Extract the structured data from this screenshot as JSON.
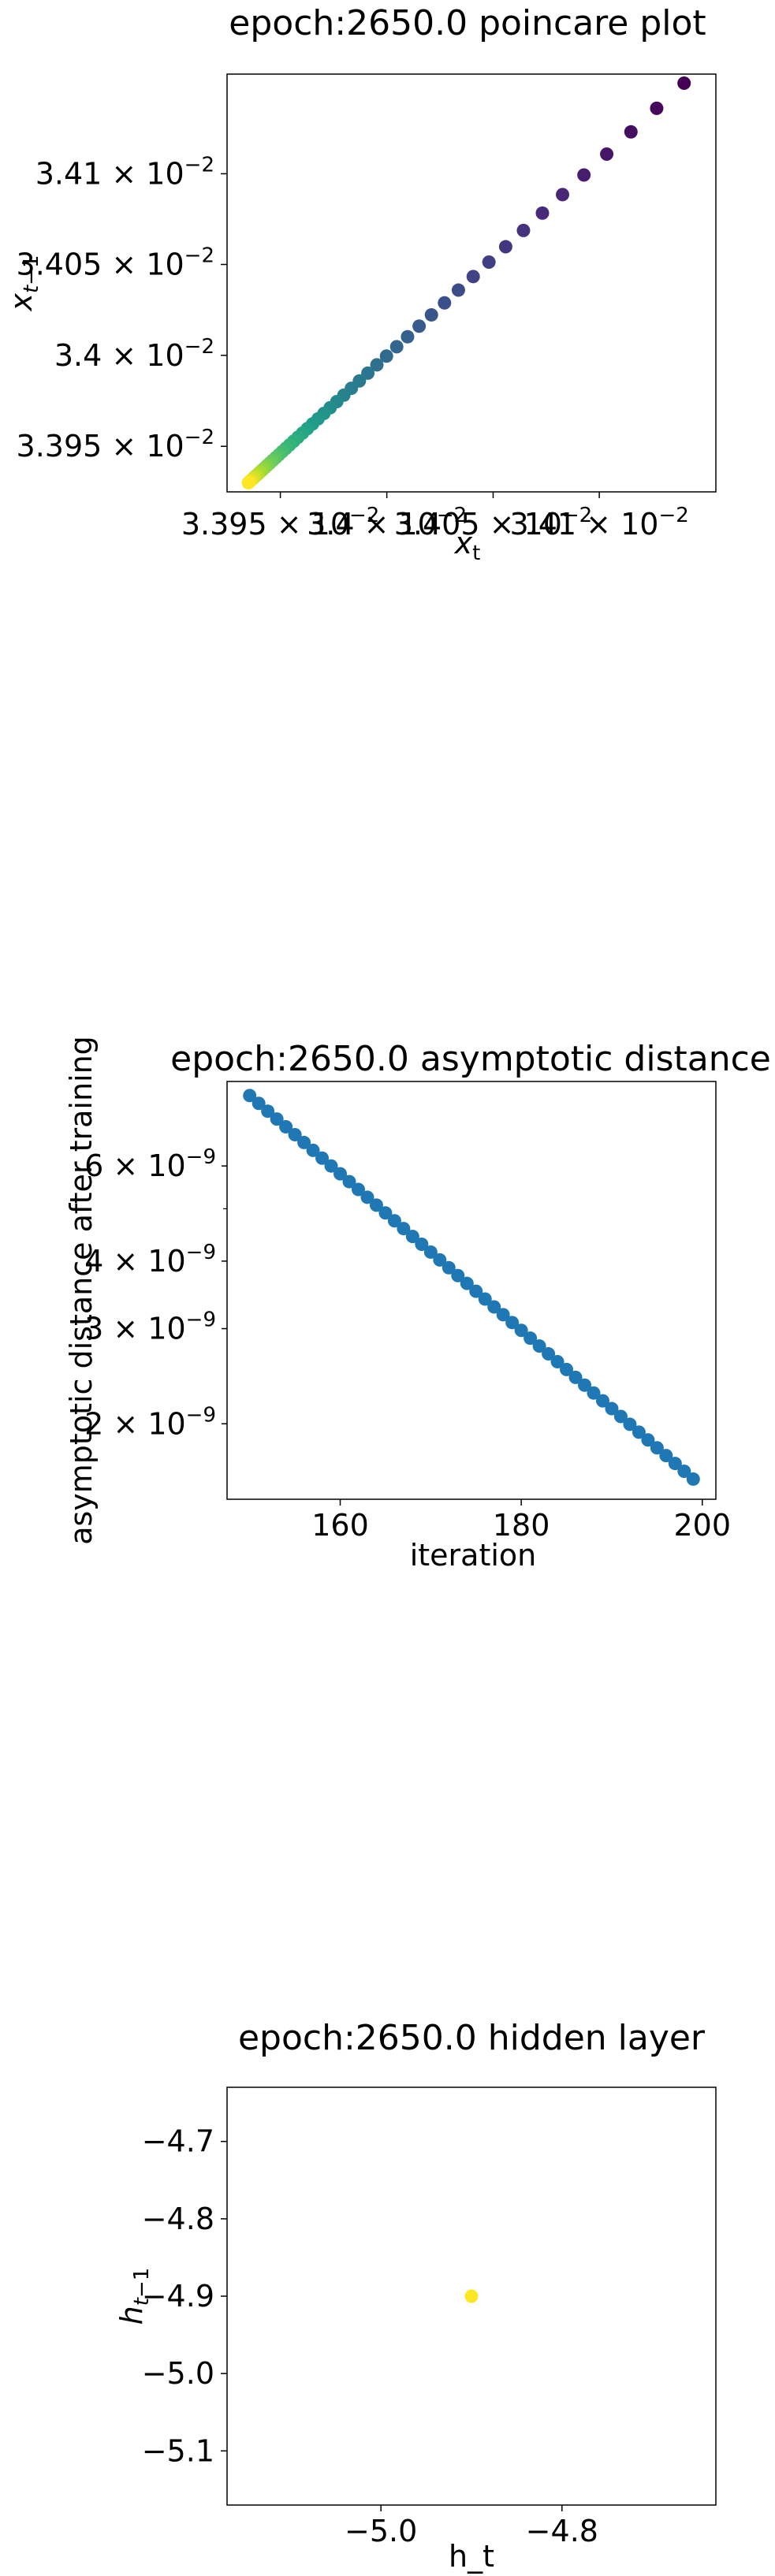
{
  "chart_data": [
    {
      "type": "scatter",
      "title": "epoch:2650.0 poincare plot",
      "xlabel": "x_t",
      "ylabel": "x_{t−1}",
      "xlim": [
        0.033925,
        0.034155
      ],
      "ylim": [
        0.033925,
        0.034155
      ],
      "x_ticks": [
        {
          "value": 0.03395,
          "mantissa": "3.395",
          "exp": "−2"
        },
        {
          "value": 0.034,
          "mantissa": "3.4",
          "exp": "−2"
        },
        {
          "value": 0.03405,
          "mantissa": "3.405",
          "exp": "−2"
        },
        {
          "value": 0.0341,
          "mantissa": "3.41",
          "exp": "−2"
        }
      ],
      "y_ticks": [
        {
          "value": 0.03395,
          "mantissa": "3.395",
          "exp": "−2"
        },
        {
          "value": 0.034,
          "mantissa": "3.4",
          "exp": "−2"
        },
        {
          "value": 0.03405,
          "mantissa": "3.405",
          "exp": "−2"
        },
        {
          "value": 0.0341,
          "mantissa": "3.41",
          "exp": "−2"
        }
      ],
      "x_scale": "log",
      "y_scale": "log",
      "color_map": "viridis (purple = earliest point, yellow = latest point)",
      "points": {
        "count": 50,
        "x_first": 0.03414,
        "y_first": 0.03415,
        "x_last": 0.033935,
        "y_last": 0.03393,
        "decay": 0.94
      },
      "grid": false
    },
    {
      "type": "scatter",
      "title": "epoch:2650.0 asymptotic distance",
      "xlabel": "iteration",
      "ylabel": "asymptotic distance after training",
      "y_scale": "log",
      "xlim": [
        147.5,
        201.5
      ],
      "ylim": [
        1.45e-09,
        8.6e-09
      ],
      "x_ticks": [
        160,
        180,
        200
      ],
      "y_ticks": [
        {
          "value": 2e-09,
          "mantissa": "2",
          "exp": "−9"
        },
        {
          "value": 3e-09,
          "mantissa": "3",
          "exp": "−9"
        },
        {
          "value": 4e-09,
          "mantissa": "4",
          "exp": "−9"
        },
        {
          "value": 6e-09,
          "mantissa": "6",
          "exp": "−9"
        }
      ],
      "color": "#1f77b4",
      "points": {
        "x_start": 150,
        "x_end": 199,
        "y_start": 8.1e-09,
        "y_end": 1.58e-09
      },
      "grid": false
    },
    {
      "type": "scatter",
      "title": "epoch:2650.0 hidden layer",
      "xlabel": "h_t",
      "ylabel": "h_{t−1}",
      "xlim": [
        -5.17,
        -4.63
      ],
      "ylim": [
        -5.17,
        -4.63
      ],
      "x_ticks": [
        {
          "value": -5.0,
          "label": "−5.0"
        },
        {
          "value": -4.8,
          "label": "−4.8"
        }
      ],
      "y_ticks": [
        {
          "value": -4.7,
          "label": "−4.7"
        },
        {
          "value": -4.8,
          "label": "−4.8"
        },
        {
          "value": -4.9,
          "label": "−4.9"
        },
        {
          "value": -5.0,
          "label": "−5.0"
        },
        {
          "value": -5.1,
          "label": "−5.1"
        }
      ],
      "points": [
        {
          "x": -4.9,
          "y": -4.9
        }
      ],
      "color": "#fde725",
      "grid": false
    }
  ]
}
